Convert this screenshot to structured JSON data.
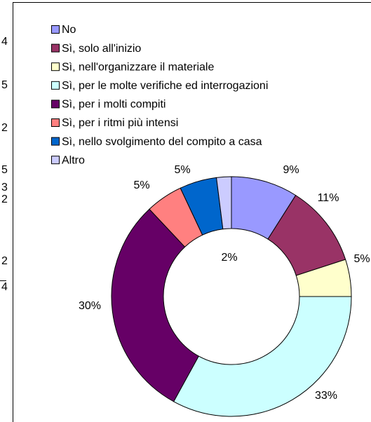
{
  "cropped_text": [
    "4",
    "5",
    "2",
    "5",
    "3",
    "2",
    "2",
    "4"
  ],
  "chart_data": {
    "type": "donut",
    "categories": [
      "No",
      "Sì, solo all'inizio",
      "Sì, nell'organizzare il materiale",
      "Sì, per le molte verifiche ed interrogazioni",
      "Sì, per i molti compiti",
      "Sì, per i ritmi più intensi",
      "Sì, nello svolgimento del compito a casa",
      "Altro"
    ],
    "values": [
      9,
      11,
      5,
      33,
      30,
      5,
      5,
      2
    ],
    "value_labels": [
      "9%",
      "11%",
      "5%",
      "33%",
      "30%",
      "5%",
      "5%",
      "2%"
    ],
    "colors": [
      "#9999ff",
      "#993366",
      "#ffffcc",
      "#ccffff",
      "#660066",
      "#ff8080",
      "#0066cc",
      "#ccccff"
    ],
    "legend": "top-left"
  }
}
